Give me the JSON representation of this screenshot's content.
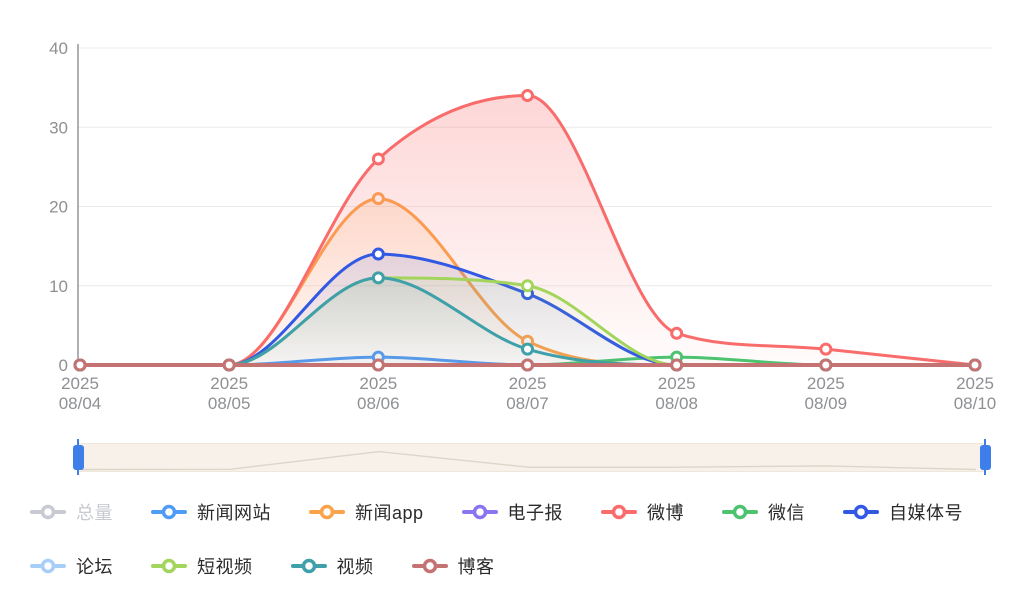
{
  "chart_data": {
    "type": "line",
    "smooth": true,
    "title": "",
    "legend_position": "bottom",
    "grid": true,
    "x_axis": {
      "year": "2025",
      "dates": [
        "08/04",
        "08/05",
        "08/06",
        "08/07",
        "08/08",
        "08/09",
        "08/10"
      ]
    },
    "y_axis": {
      "min": 0,
      "max": 40,
      "interval": 10,
      "ticks": [
        0,
        10,
        20,
        30,
        40
      ]
    },
    "series": [
      {
        "id": "total",
        "name": "总量",
        "color": "#c7cad1",
        "selected": false,
        "values": null
      },
      {
        "id": "news-site",
        "name": "新闻网站",
        "color": "#4f9bf5",
        "selected": true,
        "values": [
          0,
          0,
          1,
          0,
          0,
          0,
          0
        ]
      },
      {
        "id": "news-app",
        "name": "新闻app",
        "color": "#fba34b",
        "selected": true,
        "values": [
          0,
          0,
          21,
          3,
          0,
          0,
          0
        ]
      },
      {
        "id": "epaper",
        "name": "电子报",
        "color": "#8876f0",
        "selected": true,
        "values": [
          0,
          0,
          0,
          0,
          0,
          0,
          0
        ]
      },
      {
        "id": "weibo",
        "name": "微博",
        "color": "#f96c6c",
        "selected": true,
        "values": [
          0,
          0,
          26,
          34,
          4,
          2,
          0
        ]
      },
      {
        "id": "wechat",
        "name": "微信",
        "color": "#4dc26f",
        "selected": true,
        "values": [
          0,
          0,
          0,
          0,
          1,
          0,
          0
        ]
      },
      {
        "id": "self-media",
        "name": "自媒体号",
        "color": "#3159e3",
        "selected": true,
        "values": [
          0,
          0,
          14,
          9,
          0,
          0,
          0
        ]
      },
      {
        "id": "forum",
        "name": "论坛",
        "color": "#a8cef8",
        "selected": true,
        "values": [
          0,
          0,
          0,
          0,
          0,
          0,
          0
        ]
      },
      {
        "id": "short-video",
        "name": "短视频",
        "color": "#a3d55c",
        "selected": true,
        "values": [
          0,
          0,
          11,
          10,
          0,
          0,
          0
        ]
      },
      {
        "id": "video",
        "name": "视频",
        "color": "#3fa0a9",
        "selected": true,
        "values": [
          0,
          0,
          11,
          2,
          0,
          0,
          0
        ]
      },
      {
        "id": "blog",
        "name": "博客",
        "color": "#c47272",
        "selected": true,
        "values": [
          0,
          0,
          0,
          0,
          0,
          0,
          0
        ],
        "line_width": 4
      }
    ]
  },
  "slider": {
    "track_color": "#f7f1e9",
    "handle_color": "#3d7eeb",
    "profile_color": "#ddd5c9",
    "profile": [
      0.02,
      0.03,
      0.8,
      0.12,
      0.12,
      0.18,
      0.02
    ]
  },
  "axis_style": {
    "label_color": "#8e9093",
    "axis_line_color": "#606266",
    "grid_color": "#ebebeb"
  }
}
